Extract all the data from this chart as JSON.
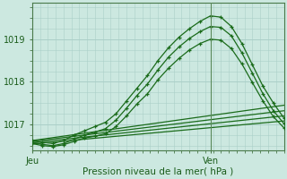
{
  "bg_color": "#cce8e0",
  "grid_color": "#aacfc8",
  "line_color": "#1a6b1a",
  "axis_color": "#4a7a4a",
  "text_color": "#1a5c1a",
  "xlabel": "Pression niveau de la mer( hPa )",
  "xtick_labels": [
    "Jeu",
    "Ven"
  ],
  "ytick_vals": [
    1017,
    1018,
    1019
  ],
  "ylim": [
    1016.4,
    1019.85
  ],
  "xlim": [
    0,
    48
  ],
  "jeu_x": 0,
  "ven_x": 34,
  "series": {
    "curve_high": {
      "x": [
        0,
        2,
        4,
        6,
        8,
        10,
        12,
        14,
        16,
        18,
        20,
        22,
        24,
        26,
        28,
        30,
        32,
        34,
        36,
        38,
        40,
        42,
        44,
        46,
        48
      ],
      "y": [
        1016.62,
        1016.58,
        1016.55,
        1016.62,
        1016.75,
        1016.85,
        1016.95,
        1017.05,
        1017.25,
        1017.55,
        1017.85,
        1018.15,
        1018.5,
        1018.8,
        1019.05,
        1019.25,
        1019.42,
        1019.55,
        1019.52,
        1019.3,
        1018.9,
        1018.4,
        1017.9,
        1017.5,
        1017.15
      ]
    },
    "curve_mid": {
      "x": [
        0,
        2,
        4,
        6,
        8,
        10,
        12,
        14,
        16,
        18,
        20,
        22,
        24,
        26,
        28,
        30,
        32,
        34,
        36,
        38,
        40,
        42,
        44,
        46,
        48
      ],
      "y": [
        1016.58,
        1016.53,
        1016.5,
        1016.55,
        1016.65,
        1016.75,
        1016.82,
        1016.9,
        1017.1,
        1017.38,
        1017.68,
        1017.95,
        1018.28,
        1018.58,
        1018.82,
        1019.02,
        1019.18,
        1019.3,
        1019.28,
        1019.08,
        1018.68,
        1018.2,
        1017.72,
        1017.32,
        1017.02
      ]
    },
    "curve_low": {
      "x": [
        0,
        2,
        4,
        6,
        8,
        10,
        12,
        14,
        16,
        18,
        20,
        22,
        24,
        26,
        28,
        30,
        32,
        34,
        36,
        38,
        40,
        42,
        44,
        46,
        48
      ],
      "y": [
        1016.55,
        1016.5,
        1016.48,
        1016.52,
        1016.6,
        1016.68,
        1016.72,
        1016.78,
        1016.95,
        1017.2,
        1017.48,
        1017.72,
        1018.05,
        1018.32,
        1018.55,
        1018.75,
        1018.9,
        1019.0,
        1018.98,
        1018.78,
        1018.42,
        1017.98,
        1017.55,
        1017.18,
        1016.92
      ]
    },
    "flat1": {
      "x": [
        0,
        48
      ],
      "y": [
        1016.62,
        1017.45
      ]
    },
    "flat2": {
      "x": [
        0,
        48
      ],
      "y": [
        1016.6,
        1017.32
      ]
    },
    "flat3": {
      "x": [
        0,
        48
      ],
      "y": [
        1016.57,
        1017.2
      ]
    },
    "flat4": {
      "x": [
        0,
        48
      ],
      "y": [
        1016.54,
        1017.08
      ]
    }
  }
}
